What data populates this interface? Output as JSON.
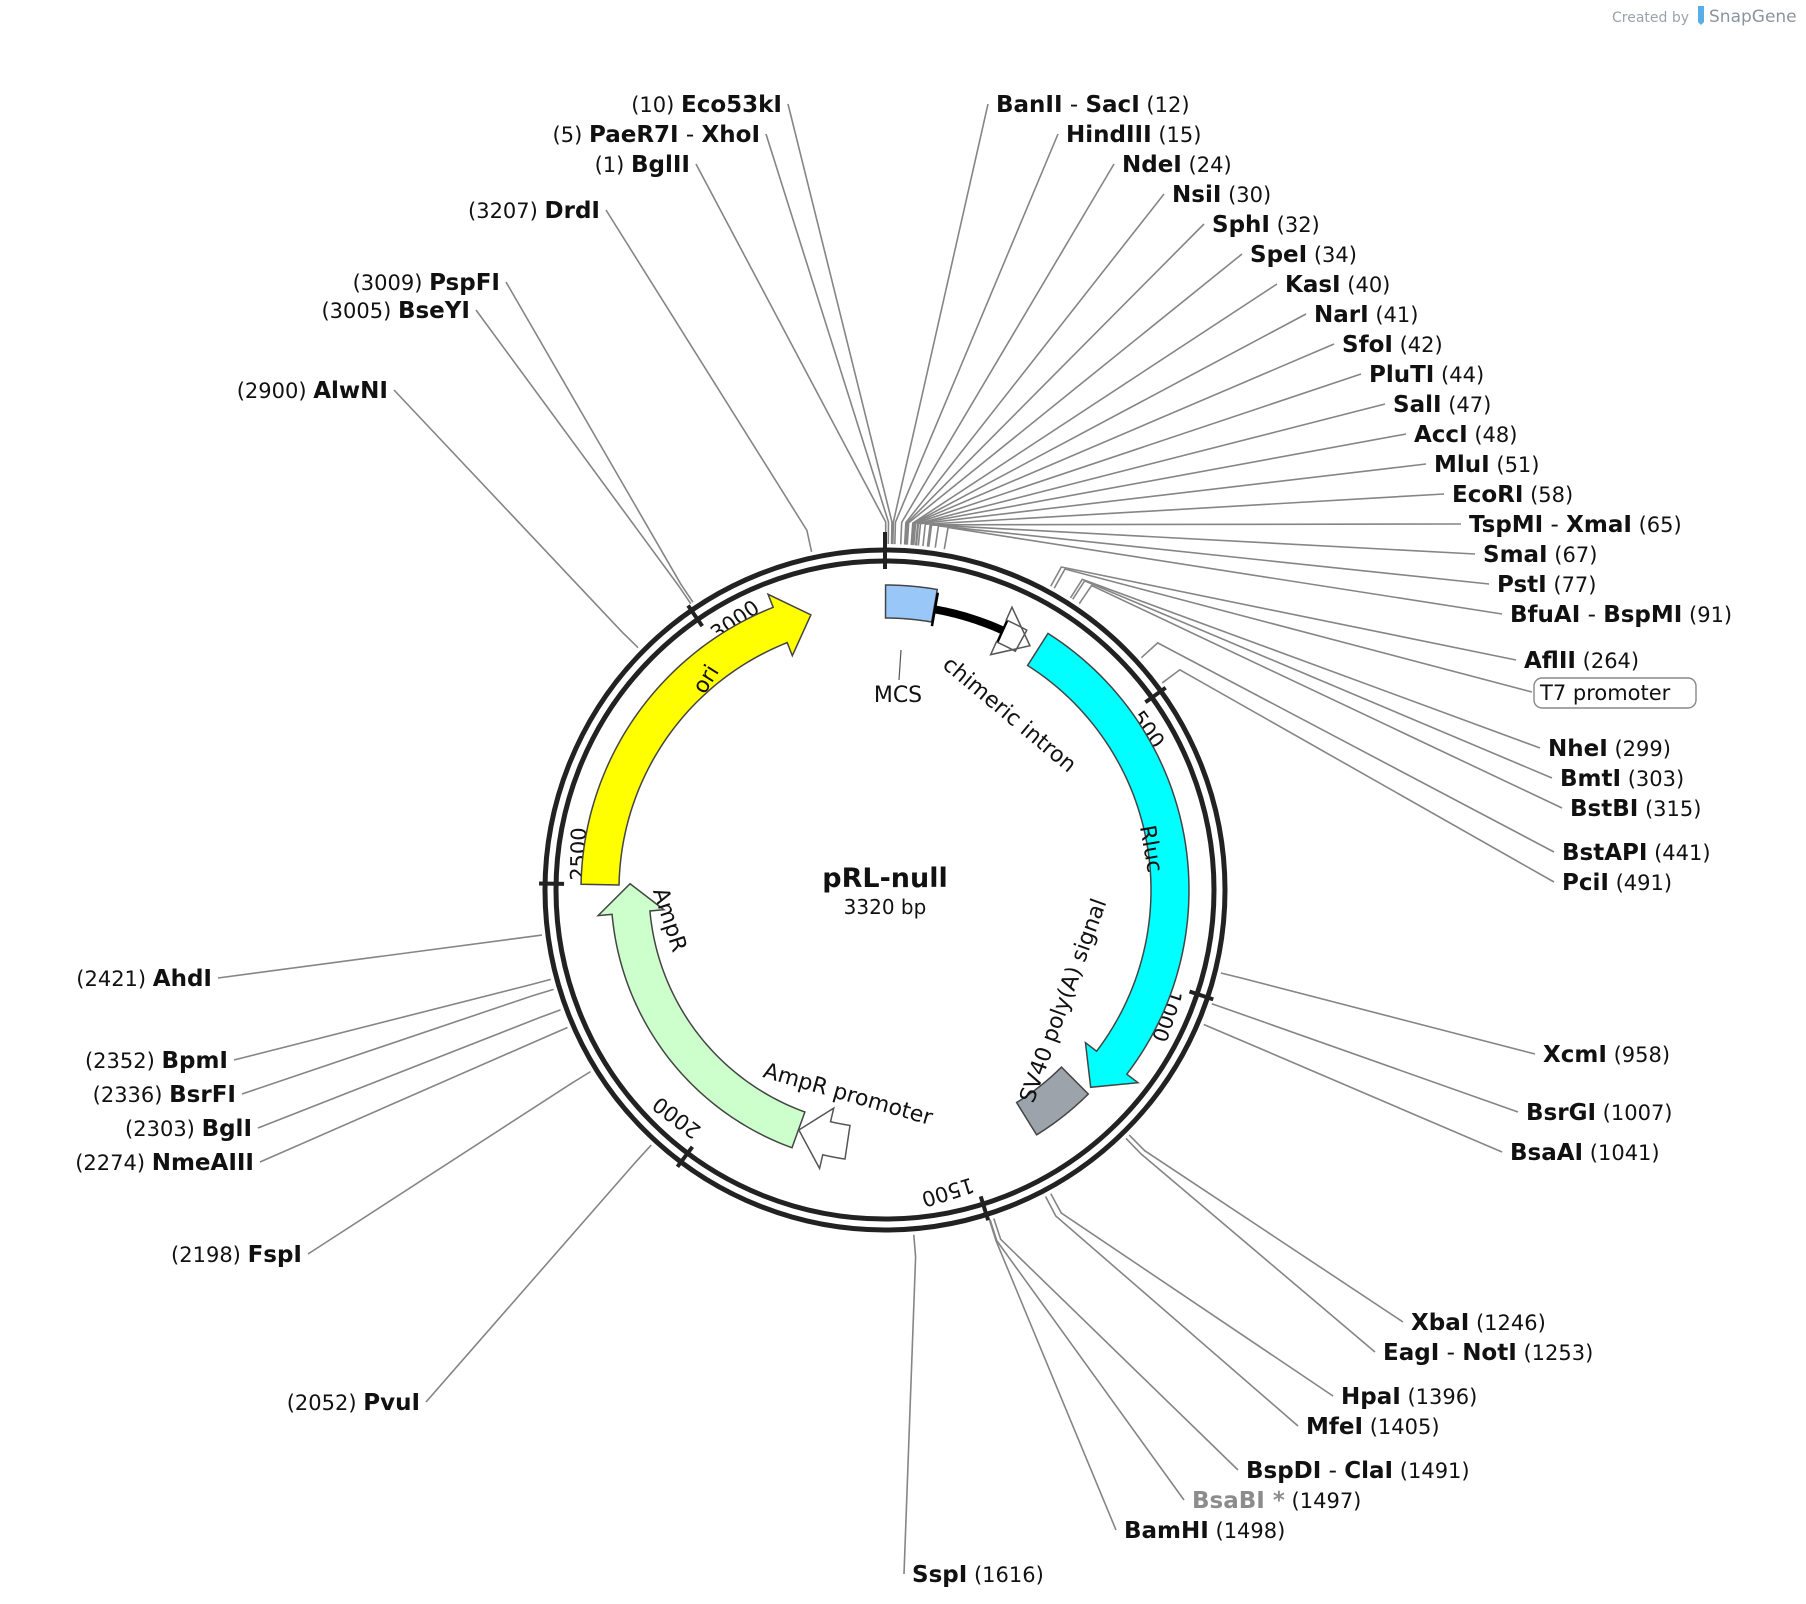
{
  "credit": {
    "created_by": "Created by",
    "brand": "SnapGene"
  },
  "plasmid": {
    "name": "pRL-null",
    "size": "3320 bp",
    "length": 3320
  },
  "ticks": [
    {
      "bp": 500,
      "label": "500"
    },
    {
      "bp": 1000,
      "label": "1000"
    },
    {
      "bp": 1500,
      "label": "1500"
    },
    {
      "bp": 2000,
      "label": "2000"
    },
    {
      "bp": 2500,
      "label": "2500"
    },
    {
      "bp": 3000,
      "label": "3000"
    }
  ],
  "features": [
    {
      "name": "ori",
      "start": 2500,
      "end": 3181,
      "color": "#ffff00",
      "type": "arrow"
    },
    {
      "name": "MCS",
      "start": 1,
      "end": 91,
      "color": "#99c8f8",
      "type": "box"
    },
    {
      "name": "chimeric intron",
      "start": 93,
      "end": 225,
      "color": "#000000",
      "type": "intron"
    },
    {
      "name": "T7 promoter",
      "start": 264,
      "end": 283,
      "color": "#ffffff",
      "type": "promoter"
    },
    {
      "name": "Rluc",
      "start": 299,
      "end": 1234,
      "color": "#00ffff",
      "type": "arrow"
    },
    {
      "name": "SV40 poly(A) signal",
      "start": 1246,
      "end": 1367,
      "color": "#9ca3ab",
      "type": "box"
    },
    {
      "name": "AmpR promoter",
      "start": 1738,
      "end": 1842,
      "color": "#ffffff",
      "type": "promoter"
    },
    {
      "name": "AmpR",
      "start": 1843,
      "end": 2503,
      "color": "#ccffcc",
      "type": "arrow"
    }
  ],
  "sites": [
    {
      "pos": "(10)",
      "name": "Eco53kI",
      "bp": 10
    },
    {
      "pos": "(5)",
      "name": "PaeR7I",
      "name2": "XhoI",
      "bp": 5
    },
    {
      "pos": "(1)",
      "name": "BglII",
      "bp": 1
    },
    {
      "pos": "(3207)",
      "name": "DrdI",
      "bp": 3207
    },
    {
      "pos": "(3009)",
      "name": "PspFI",
      "bp": 3009
    },
    {
      "pos": "(3005)",
      "name": "BseYI",
      "bp": 3005
    },
    {
      "pos": "(2900)",
      "name": "AlwNI",
      "bp": 2900
    },
    {
      "name": "BanII",
      "name2": "SacI",
      "pos": "(12)",
      "bp": 12
    },
    {
      "name": "HindIII",
      "pos": "(15)",
      "bp": 15
    },
    {
      "name": "NdeI",
      "pos": "(24)",
      "bp": 24
    },
    {
      "name": "NsiI",
      "pos": "(30)",
      "bp": 30
    },
    {
      "name": "SphI",
      "pos": "(32)",
      "bp": 32
    },
    {
      "name": "SpeI",
      "pos": "(34)",
      "bp": 34
    },
    {
      "name": "KasI",
      "pos": "(40)",
      "bp": 40
    },
    {
      "name": "NarI",
      "pos": "(41)",
      "bp": 41
    },
    {
      "name": "SfoI",
      "pos": "(42)",
      "bp": 42
    },
    {
      "name": "PluTI",
      "pos": "(44)",
      "bp": 44
    },
    {
      "name": "SalI",
      "pos": "(47)",
      "bp": 47
    },
    {
      "name": "AccI",
      "pos": "(48)",
      "bp": 48
    },
    {
      "name": "MluI",
      "pos": "(51)",
      "bp": 51
    },
    {
      "name": "EcoRI",
      "pos": "(58)",
      "bp": 58
    },
    {
      "name": "TspMI",
      "name2": "XmaI",
      "pos": "(65)",
      "bp": 65
    },
    {
      "name": "SmaI",
      "pos": "(67)",
      "bp": 67
    },
    {
      "name": "PstI",
      "pos": "(77)",
      "bp": 77
    },
    {
      "name": "BfuAI",
      "name2": "BspMI",
      "pos": "(91)",
      "bp": 91
    },
    {
      "name": "AflII",
      "pos": "(264)",
      "bp": 264
    },
    {
      "name": "NheI",
      "pos": "(299)",
      "bp": 299
    },
    {
      "name": "BmtI",
      "pos": "(303)",
      "bp": 303
    },
    {
      "name": "BstBI",
      "pos": "(315)",
      "bp": 315
    },
    {
      "name": "BstAPI",
      "pos": "(441)",
      "bp": 441
    },
    {
      "name": "PciI",
      "pos": "(491)",
      "bp": 491
    },
    {
      "name": "XcmI",
      "pos": "(958)",
      "bp": 958
    },
    {
      "name": "BsrGI",
      "pos": "(1007)",
      "bp": 1007
    },
    {
      "name": "BsaAI",
      "pos": "(1041)",
      "bp": 1041
    },
    {
      "name": "XbaI",
      "pos": "(1246)",
      "bp": 1246
    },
    {
      "name": "EagI",
      "name2": "NotI",
      "pos": "(1253)",
      "bp": 1253
    },
    {
      "name": "HpaI",
      "pos": "(1396)",
      "bp": 1396
    },
    {
      "name": "MfeI",
      "pos": "(1405)",
      "bp": 1405
    },
    {
      "name": "BspDI",
      "name2": "ClaI",
      "pos": "(1491)",
      "bp": 1491
    },
    {
      "name": "BsaBI *",
      "pos": "(1497)",
      "bp": 1497,
      "grey": true
    },
    {
      "name": "BamHI",
      "pos": "(1498)",
      "bp": 1498
    },
    {
      "name": "SspI",
      "pos": "(1616)",
      "bp": 1616
    },
    {
      "pos": "(2421)",
      "name": "AhdI",
      "bp": 2421
    },
    {
      "pos": "(2352)",
      "name": "BpmI",
      "bp": 2352
    },
    {
      "pos": "(2336)",
      "name": "BsrFI",
      "bp": 2336
    },
    {
      "pos": "(2303)",
      "name": "BglI",
      "bp": 2303
    },
    {
      "pos": "(2274)",
      "name": "NmeAIII",
      "bp": 2274
    },
    {
      "pos": "(2198)",
      "name": "FspI",
      "bp": 2198
    },
    {
      "pos": "(2052)",
      "name": "PvuI",
      "bp": 2052
    }
  ],
  "boxed_label": {
    "text": "T7 promoter",
    "bp": 270
  }
}
